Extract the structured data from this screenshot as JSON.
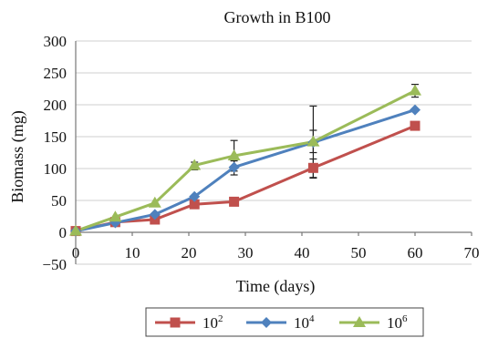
{
  "chart_data": {
    "type": "line",
    "title": "Growth in B100",
    "xlabel": "Time (days)",
    "ylabel": "Biomass (mg)",
    "xlim": [
      0,
      70
    ],
    "ylim": [
      -50,
      300
    ],
    "xticks": [
      "0",
      "10",
      "20",
      "30",
      "40",
      "50",
      "60",
      "70"
    ],
    "yticks": [
      "−50",
      "0",
      "50",
      "100",
      "150",
      "200",
      "250",
      "300"
    ],
    "grid": "horizontal",
    "legend_position": "bottom",
    "series": [
      {
        "name": "10",
        "name_sup": "2",
        "color": "#c0504d",
        "marker": "square",
        "x": [
          0,
          7,
          14,
          21,
          28,
          42,
          60
        ],
        "y": [
          2,
          16,
          20,
          44,
          48,
          101,
          167
        ],
        "err_low": [
          null,
          null,
          null,
          null,
          null,
          86,
          null
        ],
        "err_high": [
          null,
          null,
          null,
          null,
          null,
          115,
          null
        ]
      },
      {
        "name": "10",
        "name_sup": "4",
        "color": "#4f81bd",
        "marker": "diamond",
        "x": [
          0,
          7,
          14,
          21,
          28,
          42,
          60
        ],
        "y": [
          2,
          15,
          28,
          56,
          102,
          141,
          192
        ],
        "err_low": [
          null,
          null,
          null,
          null,
          90,
          125,
          null
        ],
        "err_high": [
          null,
          null,
          null,
          null,
          112,
          160,
          null
        ]
      },
      {
        "name": "10",
        "name_sup": "6",
        "color": "#9bbb59",
        "marker": "triangle",
        "x": [
          0,
          7,
          14,
          21,
          28,
          42,
          60
        ],
        "y": [
          2,
          24,
          46,
          105,
          120,
          142,
          222
        ],
        "err_low": [
          null,
          null,
          null,
          98,
          96,
          85,
          212
        ],
        "err_high": [
          null,
          null,
          null,
          110,
          144,
          198,
          232
        ]
      }
    ]
  }
}
